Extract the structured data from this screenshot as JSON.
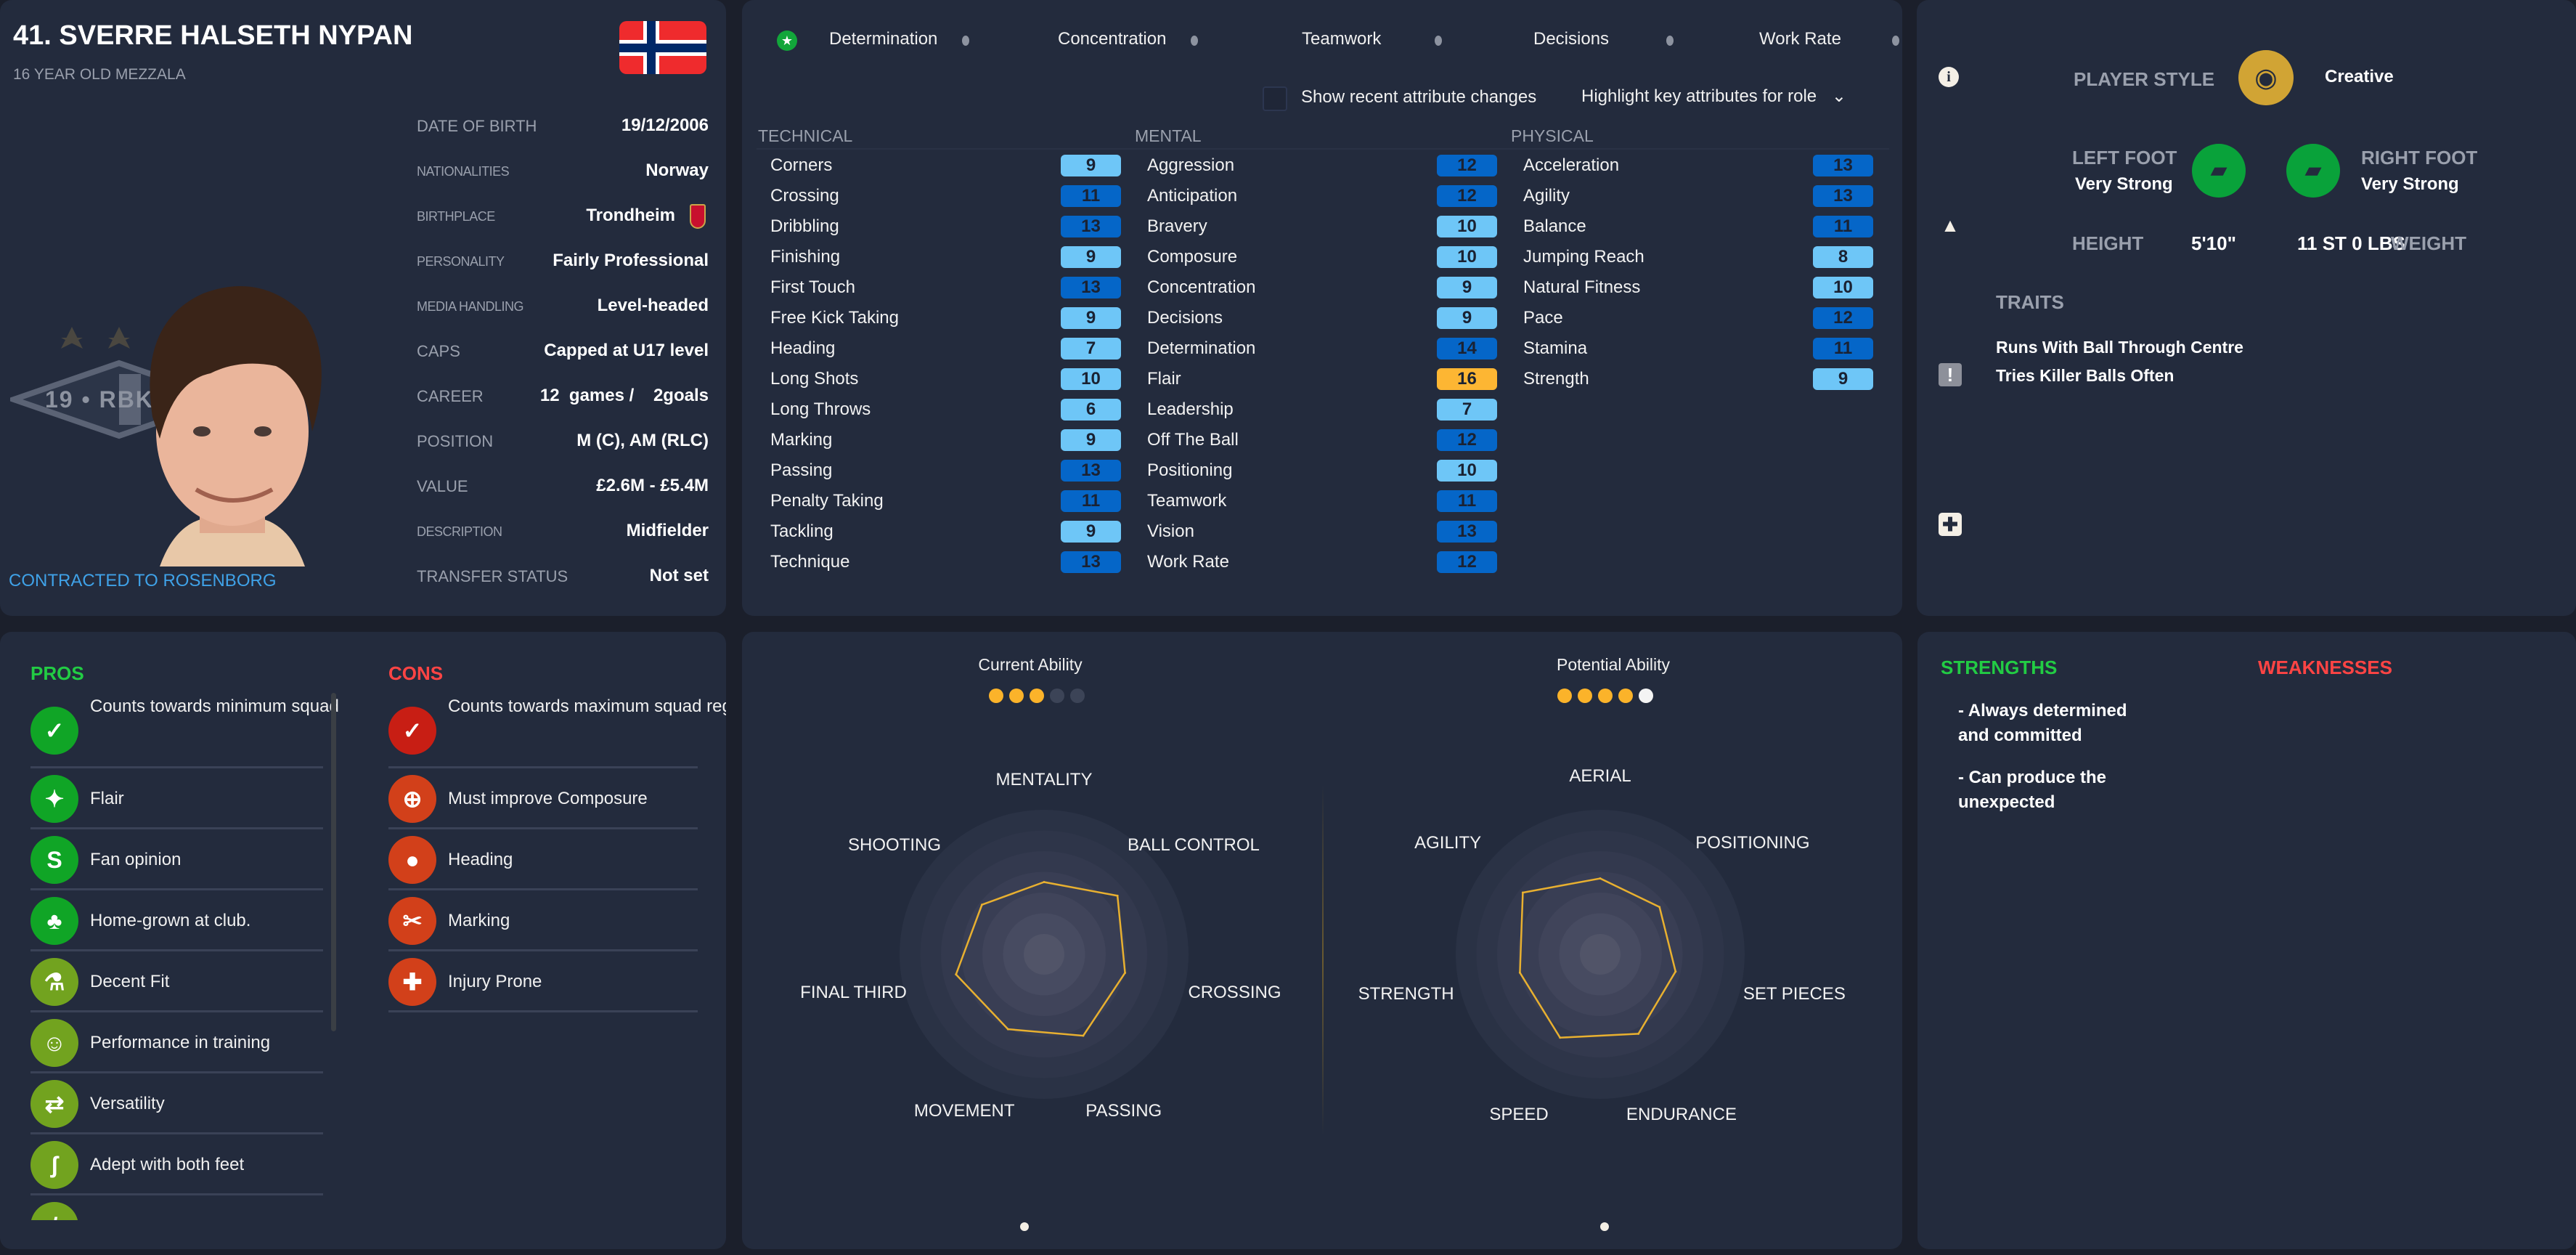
{
  "colors": {
    "bg": "#1b1f2b",
    "panel": "#232b3d",
    "attr_low": "#6ec6f7",
    "attr_mid": "#0566c8",
    "attr_high": "#fdb633",
    "pros": "#22cc44",
    "cons": "#ff4444",
    "contract": "#3fa2e8",
    "radar_line": "#e8b030"
  },
  "profile": {
    "title": "41. SVERRE HALSETH NYPAN",
    "subtitle": "16 YEAR OLD MEZZALA",
    "flag": "norway-flag",
    "contract": "CONTRACTED TO ROSENBORG",
    "badge_text": "19 • RBK",
    "info": [
      {
        "label": "DATE OF BIRTH",
        "value": "19/12/2006",
        "small": false
      },
      {
        "label": "NATIONALITIES",
        "value": "Norway",
        "small": true
      },
      {
        "label": "BIRTHPLACE",
        "value": "Trondheim",
        "small": true
      },
      {
        "label": "PERSONALITY",
        "value": "Fairly Professional",
        "small": true
      },
      {
        "label": "MEDIA HANDLING",
        "value": "Level-headed",
        "small": true
      },
      {
        "label": "CAPS",
        "value": "Capped at U17 level",
        "small": false
      },
      {
        "label": "CAREER",
        "value": "12  games /    2goals",
        "small": false
      },
      {
        "label": "POSITION",
        "value": "M (C), AM (RLC)",
        "small": false
      },
      {
        "label": "VALUE",
        "value": "£2.6M - £5.4M",
        "small": false
      },
      {
        "label": "DESCRIPTION",
        "value": "Midfielder",
        "small": true
      },
      {
        "label": "TRANSFER STATUS",
        "value": "Not set",
        "small": false
      }
    ]
  },
  "attributes": {
    "key_attrs": [
      "Determination",
      "Concentration",
      "Teamwork",
      "Decisions",
      "Work Rate"
    ],
    "show_changes_label": "Show recent attribute changes",
    "show_changes_checked": false,
    "highlight_label": "Highlight key attributes for role",
    "columns": [
      {
        "header": "TECHNICAL",
        "items": [
          [
            "Corners",
            9
          ],
          [
            "Crossing",
            11
          ],
          [
            "Dribbling",
            13
          ],
          [
            "Finishing",
            9
          ],
          [
            "First Touch",
            13
          ],
          [
            "Free Kick Taking",
            9
          ],
          [
            "Heading",
            7
          ],
          [
            "Long Shots",
            10
          ],
          [
            "Long Throws",
            6
          ],
          [
            "Marking",
            9
          ],
          [
            "Passing",
            13
          ],
          [
            "Penalty Taking",
            11
          ],
          [
            "Tackling",
            9
          ],
          [
            "Technique",
            13
          ]
        ]
      },
      {
        "header": "MENTAL",
        "items": [
          [
            "Aggression",
            12
          ],
          [
            "Anticipation",
            12
          ],
          [
            "Bravery",
            10
          ],
          [
            "Composure",
            10
          ],
          [
            "Concentration",
            9
          ],
          [
            "Decisions",
            9
          ],
          [
            "Determination",
            14
          ],
          [
            "Flair",
            16
          ],
          [
            "Leadership",
            7
          ],
          [
            "Off The Ball",
            12
          ],
          [
            "Positioning",
            10
          ],
          [
            "Teamwork",
            11
          ],
          [
            "Vision",
            13
          ],
          [
            "Work Rate",
            12
          ]
        ]
      },
      {
        "header": "PHYSICAL",
        "items": [
          [
            "Acceleration",
            13
          ],
          [
            "Agility",
            13
          ],
          [
            "Balance",
            11
          ],
          [
            "Jumping Reach",
            8
          ],
          [
            "Natural Fitness",
            10
          ],
          [
            "Pace",
            12
          ],
          [
            "Stamina",
            11
          ],
          [
            "Strength",
            9
          ]
        ]
      }
    ]
  },
  "overview": {
    "player_style_label": "PLAYER STYLE",
    "player_style": "Creative",
    "left_foot_label": "LEFT FOOT",
    "left_foot": "Very Strong",
    "right_foot_label": "RIGHT FOOT",
    "right_foot": "Very Strong",
    "height_label": "HEIGHT",
    "height": "5'10\"",
    "weight": "11 ST 0 LBS",
    "weight_label": "WEIGHT",
    "traits_label": "TRAITS",
    "traits": [
      "Runs With Ball Through Centre",
      "Tries Killer Balls Often"
    ]
  },
  "pros": {
    "title": "PROS",
    "items": [
      {
        "text": "Counts towards minimum squad registration rule (Domestic)",
        "icon": "document-check-icon",
        "glyph": "✓",
        "color": "#10a526"
      },
      {
        "text": "Flair",
        "icon": "dynamite-icon",
        "glyph": "✦",
        "color": "#10a526"
      },
      {
        "text": "Fan opinion",
        "icon": "scarf-icon",
        "glyph": "S",
        "color": "#10a526"
      },
      {
        "text": "Home-grown at club.",
        "icon": "plant-document-icon",
        "glyph": "♣",
        "color": "#10a526"
      },
      {
        "text": "Decent Fit",
        "icon": "flask-icon",
        "glyph": "⚗",
        "color": "#72a31f"
      },
      {
        "text": "Performance in training",
        "icon": "cone-smile-icon",
        "glyph": "☺",
        "color": "#72a31f"
      },
      {
        "text": "Versatility",
        "icon": "arrows-icon",
        "glyph": "⇄",
        "color": "#72a31f"
      },
      {
        "text": "Adept with both feet",
        "icon": "foot-icon",
        "glyph": "ʃ",
        "color": "#72a31f"
      },
      {
        "text": "",
        "icon": "boot-icon",
        "glyph": "/",
        "color": "#72a31f"
      }
    ]
  },
  "cons": {
    "title": "CONS",
    "items": [
      {
        "text": "Counts towards maximum squad registration rule (Domestic)",
        "icon": "document-check-icon",
        "glyph": "✓",
        "color": "#c81e14"
      },
      {
        "text": "Must improve Composure",
        "icon": "cone-target-icon",
        "glyph": "⊕",
        "color": "#d2401a"
      },
      {
        "text": "Heading",
        "icon": "head-ball-icon",
        "glyph": "●",
        "color": "#d2401a"
      },
      {
        "text": "Marking",
        "icon": "broken-chain-icon",
        "glyph": "✂",
        "color": "#d2401a"
      },
      {
        "text": "Injury Prone",
        "icon": "medical-cross-icon",
        "glyph": "✚",
        "color": "#d2401a"
      }
    ]
  },
  "ability": {
    "current_label": "Current Ability",
    "current_stars": 3,
    "current_max": 5,
    "potential_label": "Potential Ability",
    "potential_stars": 4,
    "potential_half": true,
    "potential_max": 5
  },
  "chart_data": [
    {
      "type": "radar",
      "scale": [
        0,
        20
      ],
      "axes": [
        "MENTALITY",
        "BALL CONTROL",
        "CROSSING",
        "PASSING",
        "MOVEMENT",
        "FINAL THIRD",
        "SHOOTING"
      ],
      "values": [
        10,
        13,
        11.5,
        12.5,
        11.5,
        12.5,
        11
      ]
    },
    {
      "type": "radar",
      "scale": [
        0,
        20
      ],
      "axes": [
        "AERIAL",
        "POSITIONING",
        "SET PIECES",
        "ENDURANCE",
        "SPEED",
        "STRENGTH",
        "AGILITY"
      ],
      "values": [
        10.5,
        10.5,
        10.7,
        12.2,
        12.8,
        11.4,
        13.7
      ]
    }
  ],
  "assessment": {
    "strengths_title": "STRENGTHS",
    "weaknesses_title": "WEAKNESSES",
    "strengths": [
      "- Always determined and committed",
      "- Can produce the unexpected"
    ]
  }
}
